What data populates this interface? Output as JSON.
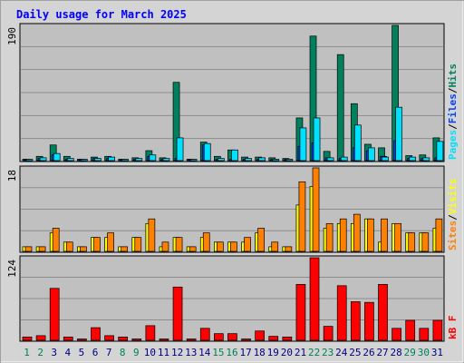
{
  "title": "Daily usage for March 2025",
  "colors": {
    "hits": "#00805c",
    "files": "#0040ff",
    "pages": "#00e0ff",
    "visits": "#ffff00",
    "sites": "#ff8000",
    "kbytes": "#ff0000",
    "title": "#0000ff",
    "weekday": "#000080",
    "weekend": "#00805c",
    "panel_bg": "#c0c0c0"
  },
  "chart_data": [
    {
      "type": "bar",
      "name": "hits-files-pages",
      "ymax_label": "190",
      "ylim": [
        0,
        190
      ],
      "legend": [
        "Pages",
        "/",
        "Files",
        "/",
        "Hits"
      ],
      "categories": [
        "1",
        "2",
        "3",
        "4",
        "5",
        "6",
        "7",
        "8",
        "9",
        "10",
        "11",
        "12",
        "13",
        "14",
        "15",
        "16",
        "17",
        "18",
        "19",
        "20",
        "21",
        "22",
        "23",
        "24",
        "25",
        "26",
        "27",
        "28",
        "29",
        "30",
        "31"
      ],
      "series": [
        {
          "name": "Hits",
          "values": [
            2,
            6,
            22,
            6,
            2,
            5,
            6,
            2,
            4,
            14,
            4,
            110,
            2,
            26,
            6,
            15,
            5,
            5,
            4,
            3,
            60,
            175,
            13,
            149,
            80,
            23,
            18,
            190,
            7,
            8,
            32
          ]
        },
        {
          "name": "Files",
          "values": [
            1,
            3,
            8,
            2,
            1,
            3,
            3,
            1,
            2,
            6,
            2,
            3,
            1,
            22,
            2,
            2,
            2,
            2,
            1,
            1,
            20,
            25,
            4,
            3,
            18,
            14,
            6,
            28,
            3,
            3,
            4
          ]
        },
        {
          "name": "Pages",
          "values": [
            1,
            4,
            10,
            3,
            1,
            3,
            5,
            1,
            3,
            8,
            3,
            32,
            1,
            24,
            3,
            15,
            3,
            4,
            2,
            2,
            46,
            60,
            4,
            5,
            50,
            18,
            5,
            75,
            5,
            4,
            27
          ]
        }
      ]
    },
    {
      "type": "bar",
      "name": "visits-sites",
      "ymax_label": "18",
      "ylim": [
        0,
        18
      ],
      "legend": [
        "Sites",
        "/",
        "Visits"
      ],
      "categories": [
        "1",
        "2",
        "3",
        "4",
        "5",
        "6",
        "7",
        "8",
        "9",
        "10",
        "11",
        "12",
        "13",
        "14",
        "15",
        "16",
        "17",
        "18",
        "19",
        "20",
        "21",
        "22",
        "23",
        "24",
        "25",
        "26",
        "27",
        "28",
        "29",
        "30",
        "31"
      ],
      "series": [
        {
          "name": "Visits",
          "values": [
            1,
            1,
            4,
            2,
            1,
            3,
            3,
            1,
            3,
            6,
            1,
            3,
            1,
            3,
            2,
            2,
            2,
            4,
            1,
            1,
            10,
            14,
            5,
            6,
            6,
            7,
            2,
            6,
            4,
            4,
            5
          ]
        },
        {
          "name": "Sites",
          "values": [
            1,
            1,
            5,
            2,
            1,
            3,
            4,
            1,
            3,
            7,
            2,
            3,
            1,
            4,
            2,
            2,
            3,
            5,
            2,
            1,
            15,
            18,
            6,
            7,
            8,
            7,
            7,
            6,
            4,
            4,
            7
          ]
        }
      ]
    },
    {
      "type": "bar",
      "name": "kbytes",
      "ymax_label": "124",
      "ylim": [
        0,
        124
      ],
      "legend": [
        "kB F"
      ],
      "categories": [
        "1",
        "2",
        "3",
        "4",
        "5",
        "6",
        "7",
        "8",
        "9",
        "10",
        "11",
        "12",
        "13",
        "14",
        "15",
        "16",
        "17",
        "18",
        "19",
        "20",
        "21",
        "22",
        "23",
        "24",
        "25",
        "26",
        "27",
        "28",
        "29",
        "30",
        "31"
      ],
      "series": [
        {
          "name": "kB F",
          "values": [
            5,
            7,
            78,
            5,
            2,
            19,
            7,
            5,
            2,
            22,
            2,
            80,
            2,
            18,
            10,
            10,
            2,
            14,
            6,
            5,
            84,
            124,
            21,
            82,
            58,
            57,
            84,
            18,
            30,
            18,
            30
          ]
        }
      ]
    }
  ],
  "x_day_labels": [
    "1",
    "2",
    "3",
    "4",
    "5",
    "6",
    "7",
    "8",
    "9",
    "10",
    "11",
    "12",
    "13",
    "14",
    "15",
    "16",
    "17",
    "18",
    "19",
    "20",
    "21",
    "22",
    "23",
    "24",
    "25",
    "26",
    "27",
    "28",
    "29",
    "30",
    "31"
  ],
  "weekend_days": [
    1,
    2,
    8,
    9,
    15,
    16,
    22,
    23,
    29,
    30
  ]
}
